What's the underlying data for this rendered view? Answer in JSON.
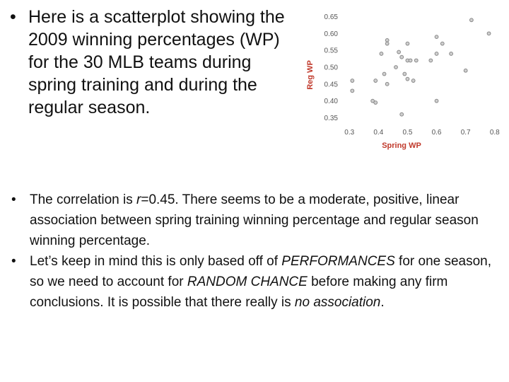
{
  "slide": {
    "bullet_char": "•",
    "top_bullet": "Here is a scatterplot showing the 2009 winning percentages (WP) for the 30 MLB teams during spring training and during the regular season.",
    "bullets": [
      {
        "parts": [
          {
            "text": "The correlation is ",
            "italic": false
          },
          {
            "text": "r",
            "italic": true
          },
          {
            "text": "=0.45.  There seems to be a moderate, positive, linear association between spring training winning percentage and regular season winning percentage.",
            "italic": false
          }
        ]
      },
      {
        "parts": [
          {
            "text": "Let’s keep in mind this is only based off of ",
            "italic": false
          },
          {
            "text": "PERFORMANCES",
            "italic": true
          },
          {
            "text": " for one season, so we need to account for ",
            "italic": false
          },
          {
            "text": "RANDOM CHANCE",
            "italic": true
          },
          {
            "text": " before making any firm conclusions.  It is possible that there really is ",
            "italic": false
          },
          {
            "text": "no association",
            "italic": true
          },
          {
            "text": ".",
            "italic": false
          }
        ]
      }
    ]
  },
  "chart_data": {
    "type": "scatter",
    "xlabel": "Spring WP",
    "ylabel": "Reg WP",
    "xlim": [
      0.28,
      0.82
    ],
    "ylim": [
      0.33,
      0.67
    ],
    "xticks": [
      "0.3",
      "0.4",
      "0.5",
      "0.6",
      "0.7",
      "0.8"
    ],
    "yticks": [
      "0.35",
      "0.40",
      "0.45",
      "0.50",
      "0.55",
      "0.60",
      "0.65"
    ],
    "grid": false,
    "colors": {
      "axis_label": "#c0392b",
      "point": "#888888"
    },
    "points": [
      {
        "x": 0.72,
        "y": 0.64
      },
      {
        "x": 0.78,
        "y": 0.6
      },
      {
        "x": 0.43,
        "y": 0.58
      },
      {
        "x": 0.43,
        "y": 0.57
      },
      {
        "x": 0.6,
        "y": 0.59
      },
      {
        "x": 0.5,
        "y": 0.57
      },
      {
        "x": 0.62,
        "y": 0.57
      },
      {
        "x": 0.41,
        "y": 0.54
      },
      {
        "x": 0.6,
        "y": 0.54
      },
      {
        "x": 0.65,
        "y": 0.54
      },
      {
        "x": 0.47,
        "y": 0.545
      },
      {
        "x": 0.48,
        "y": 0.53
      },
      {
        "x": 0.5,
        "y": 0.52
      },
      {
        "x": 0.51,
        "y": 0.52
      },
      {
        "x": 0.53,
        "y": 0.52
      },
      {
        "x": 0.58,
        "y": 0.52
      },
      {
        "x": 0.46,
        "y": 0.5
      },
      {
        "x": 0.7,
        "y": 0.49
      },
      {
        "x": 0.42,
        "y": 0.48
      },
      {
        "x": 0.49,
        "y": 0.48
      },
      {
        "x": 0.5,
        "y": 0.465
      },
      {
        "x": 0.52,
        "y": 0.46
      },
      {
        "x": 0.31,
        "y": 0.46
      },
      {
        "x": 0.39,
        "y": 0.46
      },
      {
        "x": 0.43,
        "y": 0.45
      },
      {
        "x": 0.31,
        "y": 0.43
      },
      {
        "x": 0.38,
        "y": 0.4
      },
      {
        "x": 0.39,
        "y": 0.395
      },
      {
        "x": 0.48,
        "y": 0.36
      },
      {
        "x": 0.6,
        "y": 0.4
      }
    ]
  }
}
